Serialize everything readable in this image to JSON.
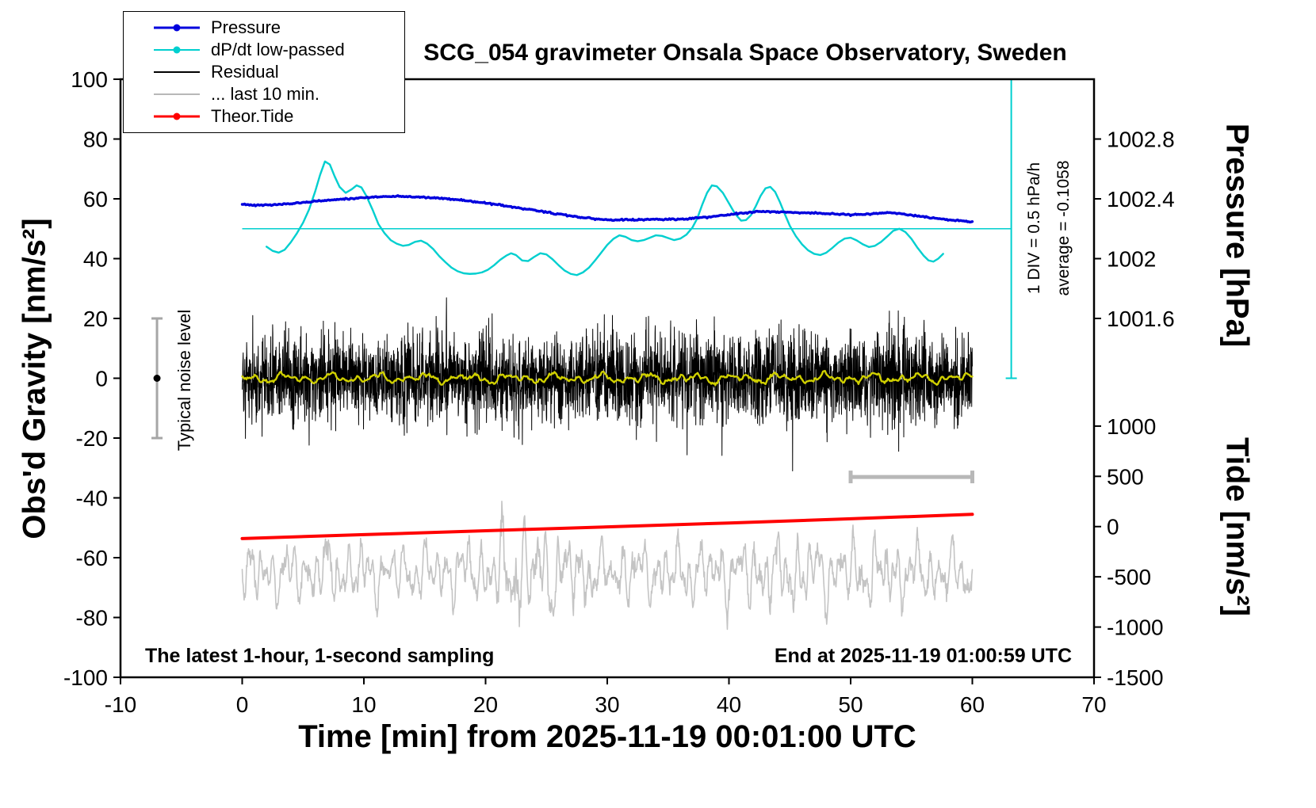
{
  "chart_data": {
    "type": "line",
    "title": "SCG_054 gravimeter Onsala Space Observatory, Sweden",
    "xlabel": "Time [min] from 2025-11-19 00:01:00 UTC",
    "ylabel_left": "Obs'd Gravity [nm/s²]",
    "ylabel_pressure": "Pressure [hPa]",
    "ylabel_tide": "Tide [nm/s²]",
    "xlim": [
      -10,
      70
    ],
    "ylim": [
      -100,
      100
    ],
    "grid": false,
    "legend_position": "top-left",
    "x_ticks": [
      "-10",
      "0",
      "10",
      "20",
      "30",
      "40",
      "50",
      "60",
      "70"
    ],
    "x_tick_values": [
      -10,
      0,
      10,
      20,
      30,
      40,
      50,
      60,
      70
    ],
    "y_ticks_left": [
      "-100",
      "-80",
      "-60",
      "-40",
      "-20",
      "0",
      "20",
      "40",
      "60",
      "80",
      "100"
    ],
    "y_tick_values_left": [
      -100,
      -80,
      -60,
      -40,
      -20,
      0,
      20,
      40,
      60,
      80,
      100
    ],
    "pressure_ticks": [
      {
        "label": "1002.8",
        "g": 80
      },
      {
        "label": "1002.4",
        "g": 60
      },
      {
        "label": "1002",
        "g": 40
      },
      {
        "label": "1001.6",
        "g": 20
      }
    ],
    "tide_ticks": [
      {
        "label": "1000",
        "g": -16.0
      },
      {
        "label": "500",
        "g": -32.8
      },
      {
        "label": "0",
        "g": -49.6
      },
      {
        "label": "-500",
        "g": -66.4
      },
      {
        "label": "-1000",
        "g": -83.2
      },
      {
        "label": "-1500",
        "g": -100
      }
    ],
    "legend": [
      {
        "label": "Pressure",
        "color": "#0000dd",
        "dot": true,
        "lw": 3.2
      },
      {
        "label": "dP/dt low-passed",
        "color": "#00cfcf",
        "dot": true,
        "lw": 2.4
      },
      {
        "label": "Residual",
        "color": "#000000",
        "dot": false,
        "lw": 2.6
      },
      {
        "label": "... last 10 min.",
        "color": "#b8b8b8",
        "dot": false,
        "lw": 2.6
      },
      {
        "label": "Theor.Tide",
        "color": "#ff0000",
        "dot": true,
        "lw": 3.4
      }
    ],
    "annotations": {
      "noise_label": "Typical noise level",
      "div_label": "1 DIV = 0.5 hPa/h",
      "avg_label": "average = -0.1058",
      "footer_left": "The latest 1-hour, 1-second sampling",
      "footer_right": "End at 2025-11-19 01:00:59 UTC"
    },
    "noise_bar": {
      "x": -7,
      "g_low": -20,
      "g_high": 20,
      "dot_g": 0,
      "color": "#a6a6a6"
    },
    "scale_bar": {
      "x0": 50,
      "x1": 60,
      "g": -33,
      "color": "#b8b8b8"
    },
    "div_scale": {
      "x": 63.2,
      "g0": 0,
      "g1": 100,
      "color": "#00cfcf"
    },
    "series": {
      "pressure": {
        "name": "Pressure",
        "color": "#0000dd",
        "width": 3.4,
        "jitter": 0.12,
        "jitter_seed": 311,
        "points": [
          [
            0,
            58.2
          ],
          [
            1,
            57.8
          ],
          [
            2,
            57.9
          ],
          [
            3,
            58.1
          ],
          [
            4,
            58.4
          ],
          [
            5,
            58.8
          ],
          [
            6,
            59.2
          ],
          [
            7,
            59.5
          ],
          [
            8,
            59.9
          ],
          [
            9,
            60.1
          ],
          [
            10,
            60.4
          ],
          [
            11,
            60.6
          ],
          [
            12,
            60.8
          ],
          [
            13,
            60.9
          ],
          [
            14,
            60.7
          ],
          [
            15,
            60.5
          ],
          [
            16,
            60.3
          ],
          [
            17,
            60.0
          ],
          [
            18,
            59.6
          ],
          [
            19,
            59.1
          ],
          [
            20,
            58.6
          ],
          [
            21,
            58.0
          ],
          [
            22,
            57.4
          ],
          [
            23,
            56.8
          ],
          [
            24,
            56.2
          ],
          [
            25,
            55.6
          ],
          [
            26,
            54.9
          ],
          [
            27,
            54.3
          ],
          [
            28,
            53.7
          ],
          [
            29,
            53.3
          ],
          [
            30,
            53.0
          ],
          [
            31,
            52.9
          ],
          [
            32,
            53.0
          ],
          [
            33,
            53.1
          ],
          [
            34,
            53.2
          ],
          [
            35,
            53.1
          ],
          [
            36,
            53.2
          ],
          [
            37,
            53.5
          ],
          [
            38,
            53.8
          ],
          [
            39,
            54.2
          ],
          [
            40,
            54.7
          ],
          [
            41,
            55.2
          ],
          [
            42,
            55.6
          ],
          [
            43,
            55.8
          ],
          [
            44,
            55.7
          ],
          [
            45,
            55.6
          ],
          [
            46,
            55.4
          ],
          [
            47,
            55.3
          ],
          [
            48,
            55.1
          ],
          [
            49,
            54.9
          ],
          [
            50,
            54.7
          ],
          [
            51,
            54.8
          ],
          [
            52,
            55.1
          ],
          [
            53,
            55.4
          ],
          [
            54,
            55.0
          ],
          [
            55,
            54.5
          ],
          [
            56,
            54.0
          ],
          [
            57,
            53.5
          ],
          [
            58,
            53.0
          ],
          [
            59,
            52.7
          ],
          [
            60,
            52.4
          ]
        ]
      },
      "dpdt": {
        "name": "dP/dt low-passed",
        "color": "#00cfcf",
        "width": 2.4,
        "mean_line_g": 50,
        "mean_line_x": [
          0,
          63.2
        ],
        "points": [
          [
            2,
            44
          ],
          [
            2.5,
            42.6
          ],
          [
            3,
            42
          ],
          [
            3.5,
            43
          ],
          [
            4,
            45.5
          ],
          [
            4.5,
            48.5
          ],
          [
            5,
            52
          ],
          [
            5.5,
            56.5
          ],
          [
            6,
            62.5
          ],
          [
            6.4,
            68
          ],
          [
            6.8,
            72.5
          ],
          [
            7.2,
            71.5
          ],
          [
            7.6,
            67.5
          ],
          [
            8,
            64
          ],
          [
            8.5,
            62
          ],
          [
            9,
            63.2
          ],
          [
            9.4,
            64.5
          ],
          [
            9.8,
            63.8
          ],
          [
            10.2,
            61
          ],
          [
            10.7,
            56.5
          ],
          [
            11.2,
            51.5
          ],
          [
            11.7,
            48.5
          ],
          [
            12.2,
            46.2
          ],
          [
            12.7,
            45
          ],
          [
            13.2,
            44.3
          ],
          [
            13.7,
            44.6
          ],
          [
            14.2,
            45.6
          ],
          [
            14.7,
            46
          ],
          [
            15.2,
            45
          ],
          [
            15.7,
            43.2
          ],
          [
            16.2,
            40.8
          ],
          [
            16.7,
            38.8
          ],
          [
            17.2,
            37
          ],
          [
            17.7,
            35.8
          ],
          [
            18.2,
            35.1
          ],
          [
            18.7,
            34.9
          ],
          [
            19.2,
            35
          ],
          [
            19.7,
            35.4
          ],
          [
            20.2,
            36.3
          ],
          [
            20.7,
            37.8
          ],
          [
            21.2,
            39.6
          ],
          [
            21.7,
            41
          ],
          [
            22.1,
            41.8
          ],
          [
            22.5,
            41.2
          ],
          [
            23,
            39.4
          ],
          [
            23.5,
            39.2
          ],
          [
            24,
            40.6
          ],
          [
            24.5,
            41.8
          ],
          [
            25,
            41.4
          ],
          [
            25.5,
            39.8
          ],
          [
            26,
            37.8
          ],
          [
            26.5,
            36
          ],
          [
            27,
            34.9
          ],
          [
            27.5,
            34.5
          ],
          [
            28,
            35.4
          ],
          [
            28.5,
            37
          ],
          [
            29,
            39.4
          ],
          [
            29.5,
            42
          ],
          [
            30,
            44.6
          ],
          [
            30.5,
            46.6
          ],
          [
            31,
            47.8
          ],
          [
            31.5,
            47.3
          ],
          [
            32,
            46.2
          ],
          [
            32.5,
            45.8
          ],
          [
            33,
            46.2
          ],
          [
            33.5,
            47
          ],
          [
            34,
            47.8
          ],
          [
            34.5,
            47.6
          ],
          [
            35,
            46.9
          ],
          [
            35.5,
            46.2
          ],
          [
            36,
            46.7
          ],
          [
            36.5,
            48
          ],
          [
            37,
            50.4
          ],
          [
            37.4,
            53.5
          ],
          [
            37.8,
            58
          ],
          [
            38.2,
            62
          ],
          [
            38.6,
            64.5
          ],
          [
            39,
            64.2
          ],
          [
            39.5,
            62
          ],
          [
            40,
            58.5
          ],
          [
            40.5,
            55
          ],
          [
            41,
            52.7
          ],
          [
            41.4,
            52.9
          ],
          [
            41.8,
            54.5
          ],
          [
            42.2,
            57.5
          ],
          [
            42.6,
            61
          ],
          [
            43,
            63.5
          ],
          [
            43.4,
            64
          ],
          [
            43.8,
            62.3
          ],
          [
            44.2,
            58.8
          ],
          [
            44.6,
            54.8
          ],
          [
            45,
            51
          ],
          [
            45.5,
            47.5
          ],
          [
            46,
            44.8
          ],
          [
            46.5,
            42.8
          ],
          [
            47,
            41.6
          ],
          [
            47.5,
            41.2
          ],
          [
            48,
            42
          ],
          [
            48.5,
            43.6
          ],
          [
            49,
            45.4
          ],
          [
            49.5,
            46.7
          ],
          [
            50,
            47
          ],
          [
            50.5,
            46.1
          ],
          [
            51,
            44.8
          ],
          [
            51.5,
            43.9
          ],
          [
            52,
            44.3
          ],
          [
            52.5,
            45.6
          ],
          [
            53,
            47.4
          ],
          [
            53.5,
            49.3
          ],
          [
            54,
            50
          ],
          [
            54.5,
            48.9
          ],
          [
            55,
            46.6
          ],
          [
            55.5,
            43.6
          ],
          [
            56,
            41
          ],
          [
            56.4,
            39.4
          ],
          [
            56.8,
            39
          ],
          [
            57.2,
            40
          ],
          [
            57.6,
            41.6
          ]
        ]
      },
      "residual": {
        "name": "Residual",
        "color": "#000000",
        "width": 1,
        "n": 3600,
        "x_range": [
          0,
          60
        ],
        "sigma": 7.0,
        "clip": 31,
        "seed": 20251119
      },
      "residual_mean": {
        "name": "Residual low-passed",
        "color": "#d0d000",
        "width": 2.4,
        "n": 700,
        "x_range": [
          0,
          60
        ],
        "seed": 54
      },
      "last10": {
        "name": "... last 10 min.",
        "color": "#c4c4c4",
        "width": 1.6,
        "n": 1500,
        "x_range": [
          0,
          60
        ],
        "center": -65,
        "clip_low": -86,
        "clip_high": -41,
        "seed": 1059
      },
      "theor_tide": {
        "name": "Theor.Tide",
        "color": "#ff0000",
        "width": 4,
        "points": [
          [
            0,
            -53.6
          ],
          [
            10,
            -52.3
          ],
          [
            20,
            -51.0
          ],
          [
            30,
            -49.7
          ],
          [
            40,
            -48.4
          ],
          [
            50,
            -47.0
          ],
          [
            60,
            -45.5
          ]
        ]
      }
    }
  }
}
